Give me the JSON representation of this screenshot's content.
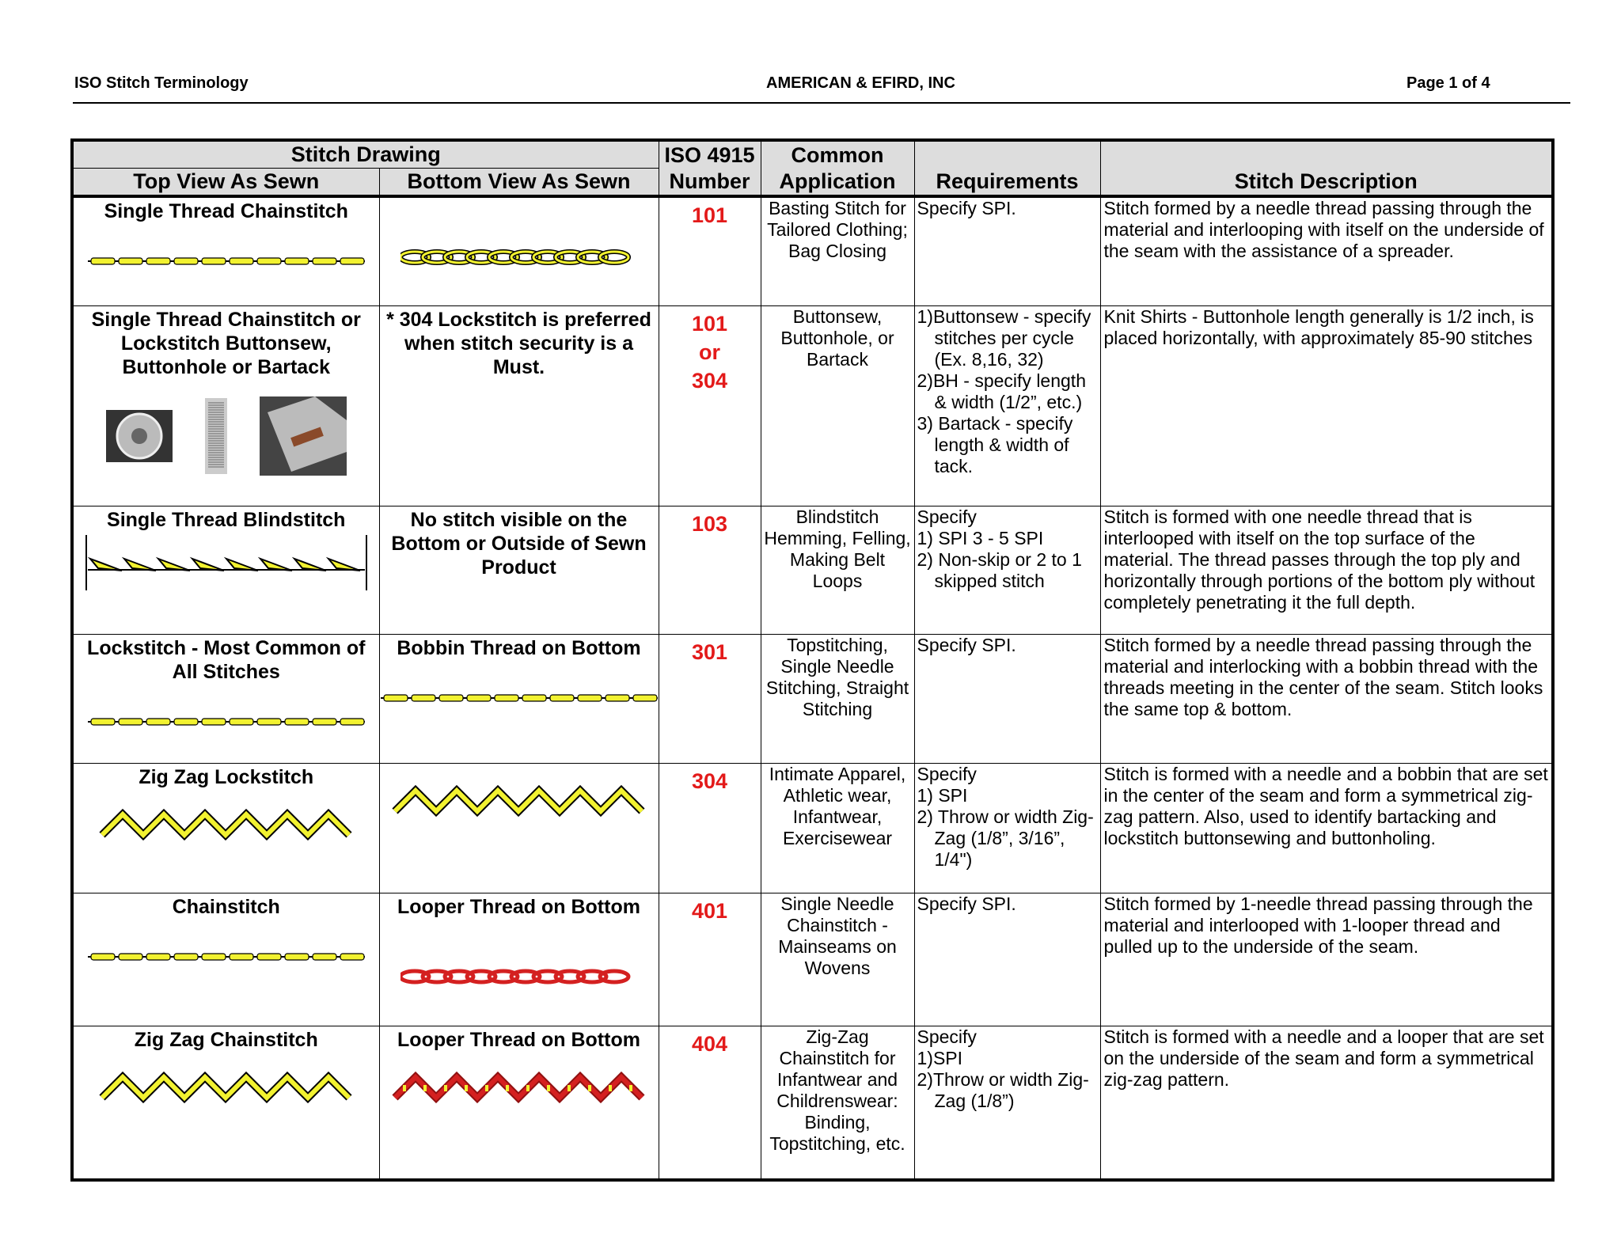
{
  "header": {
    "left": "ISO Stitch Terminology",
    "center": "AMERICAN & EFIRD, INC",
    "right": "Page 1 of 4"
  },
  "columns": {
    "stitch_drawing": "Stitch Drawing",
    "top_view": "Top View As Sewn",
    "bottom_view": "Bottom View As Sewn",
    "iso_1": "ISO 4915",
    "iso_2": "Number",
    "app_1": "Common",
    "app_2": "Application",
    "requirements": "Requirements",
    "description": "Stitch Description"
  },
  "colors": {
    "thread_yellow": "#f2f230",
    "thread_red": "#d42020",
    "iso_number": "#e31a1a",
    "header_bg": "#dddddd"
  },
  "rows": [
    {
      "top_title": "Single Thread Chainstitch",
      "top_drawing": "dash-yellow",
      "bottom_title": "",
      "bottom_drawing": "chain-yellow",
      "number": "101",
      "application": "Basting Stitch for Tailored Clothing; Bag Closing",
      "requirements": [
        "Specify SPI."
      ],
      "description": "Stitch formed by a needle thread passing through the material and interlooping with itself on the underside of the seam with the assistance of a spreader."
    },
    {
      "top_title": "Single Thread Chainstitch or Lockstitch Buttonsew, Buttonhole or Bartack",
      "top_drawing": "photos",
      "bottom_title": "* 304 Lockstitch is preferred when stitch security is a Must.",
      "bottom_drawing": "",
      "number": "101",
      "number_or": "or",
      "number_2": "304",
      "application": "Buttonsew, Buttonhole, or Bartack",
      "requirements": [
        "1)Buttonsew - specify stitches per cycle (Ex. 8,16, 32)",
        "2)BH - specify length & width (1/2”, etc.)",
        "3) Bartack - specify length & width of tack."
      ],
      "description": "Knit Shirts - Buttonhole length generally is 1/2 inch, is placed horizontally, with approximately 85-90 stitches"
    },
    {
      "top_title": "Single Thread Blindstitch",
      "top_drawing": "blindstitch",
      "bottom_title": "No stitch visible on the Bottom or Outside of Sewn Product",
      "bottom_drawing": "",
      "number": "103",
      "application": "Blindstitch Hemming, Felling, Making Belt Loops",
      "requirements": [
        "Specify",
        "1) SPI  3 - 5 SPI",
        "2) Non-skip or 2 to 1 skipped stitch"
      ],
      "description": "Stitch is formed with one needle thread that is interlooped with itself on the top surface of the material. The thread passes through the top ply and horizontally through portions of the bottom ply without completely penetrating it the full depth."
    },
    {
      "top_title": "Lockstitch - Most Common of All Stitches",
      "top_drawing": "dash-yellow",
      "bottom_title": "Bobbin Thread on Bottom",
      "bottom_drawing": "dash-yellow",
      "number": "301",
      "application": "Topstitching, Single Needle Stitching, Straight Stitching",
      "requirements": [
        "Specify SPI."
      ],
      "description": "Stitch formed by a needle thread passing through the material and interlocking with a bobbin thread with the threads meeting in the center of the seam. Stitch looks the same top & bottom."
    },
    {
      "top_title": "Zig Zag Lockstitch",
      "top_drawing": "zigzag-yellow",
      "bottom_title": "",
      "bottom_drawing": "zigzag-yellow",
      "number": "304",
      "application": "Intimate Apparel, Athletic wear, Infantwear, Exercisewear",
      "requirements": [
        "Specify",
        "1) SPI",
        "2) Throw or width Zig-Zag (1/8”, 3/16”, 1/4\")"
      ],
      "description": "Stitch is formed with a needle and a bobbin that are set in the center of the seam and form a symmetrical zig-zag pattern. Also, used to identify bartacking and lockstitch buttonsewing and buttonholing."
    },
    {
      "top_title": "Chainstitch",
      "top_drawing": "dash-yellow",
      "bottom_title": "Looper Thread on Bottom",
      "bottom_drawing": "chain-red",
      "number": "401",
      "application": "Single Needle Chainstitch - Mainseams on Wovens",
      "requirements": [
        "Specify SPI."
      ],
      "description": "Stitch formed by 1-needle thread passing through the material and interlooped with 1-looper thread and pulled up to the underside of the seam."
    },
    {
      "top_title": "Zig Zag Chainstitch",
      "top_drawing": "zigzag-yellow",
      "bottom_title": "Looper Thread on Bottom",
      "bottom_drawing": "zigzag-red",
      "number": "404",
      "application": "Zig-Zag Chainstitch for Infantwear and Childrenswear: Binding, Topstitching, etc.",
      "requirements": [
        "Specify",
        "1)SPI",
        "2)Throw or width Zig-Zag (1/8”)"
      ],
      "description": "Stitch is formed with a needle and a looper that are set on the underside of the seam and form a symmetrical zig-zag pattern."
    }
  ]
}
